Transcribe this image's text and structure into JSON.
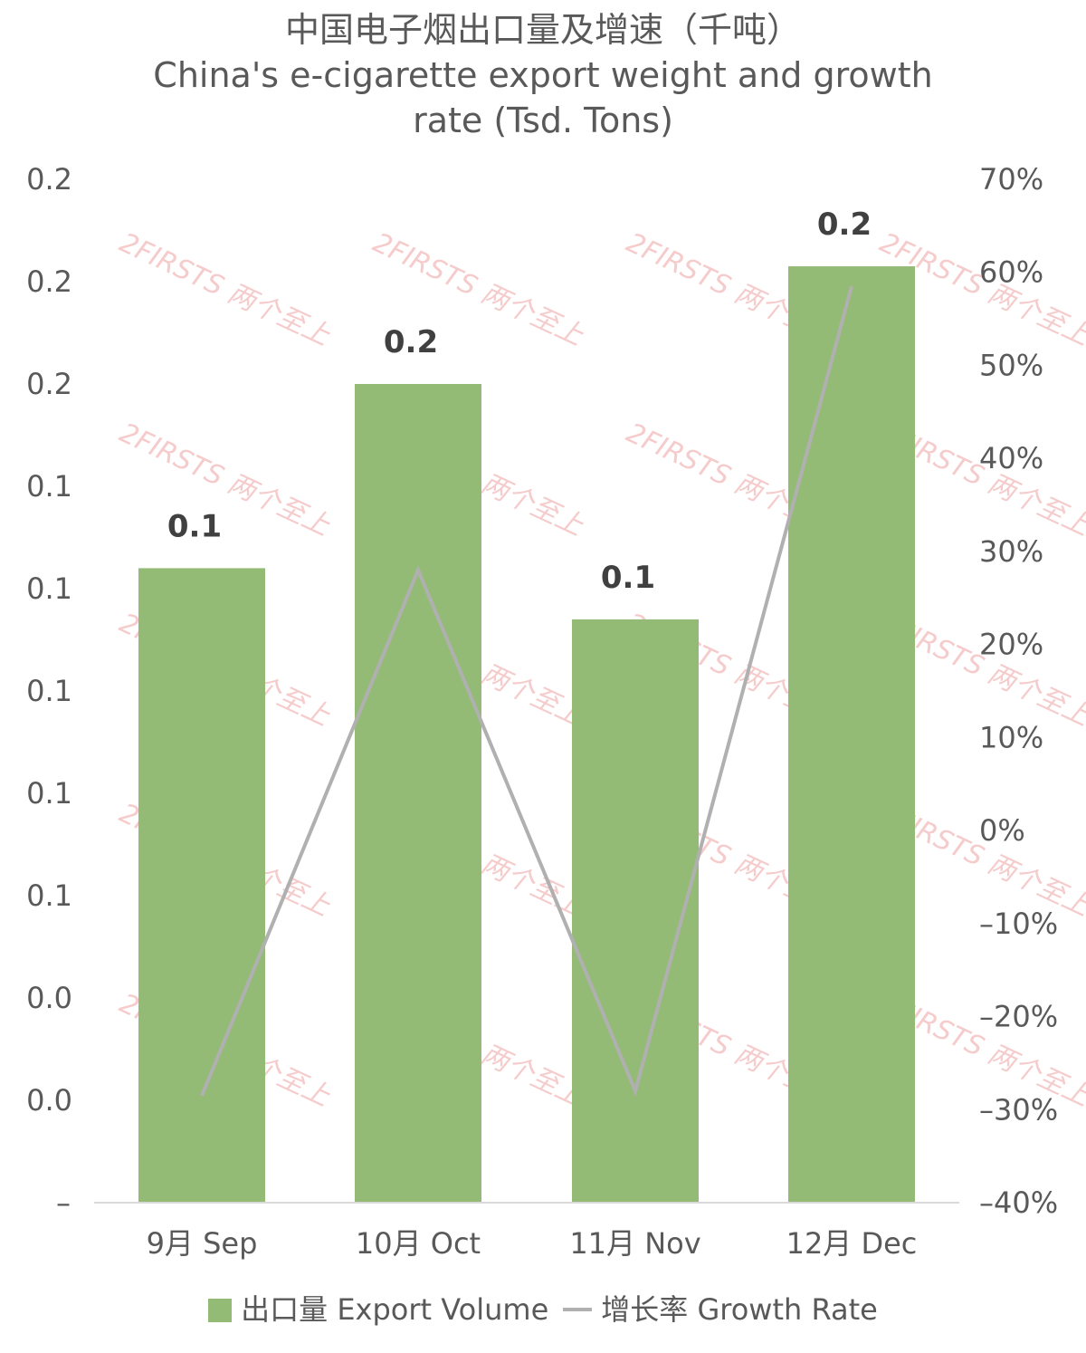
{
  "title_cn": "中国电子烟出口量及增速（千吨）",
  "title_en_line1": "China's e-cigarette export weight and growth",
  "title_en_line2": "rate (Tsd. Tons)",
  "watermark": "2FIRSTS 两个至上",
  "legend": {
    "bar_label": "出口量 Export Volume",
    "line_label": "增长率 Growth Rate"
  },
  "colors": {
    "bar": "#93bb76",
    "line": "#b0b0b0",
    "axis": "#d9d9d9"
  },
  "chart_data": {
    "type": "bar",
    "categories": [
      "9月 Sep",
      "10月 Oct",
      "11月 Nov",
      "12月 Dec"
    ],
    "series": [
      {
        "name": "出口量 Export Volume",
        "type": "bar",
        "axis": "left",
        "values": [
          0.124,
          0.16,
          0.114,
          0.183
        ]
      },
      {
        "name": "增长率 Growth Rate",
        "type": "line",
        "axis": "right",
        "values": [
          -28.5,
          28,
          -28,
          58.5
        ]
      }
    ],
    "data_labels": [
      "0.1",
      "0.2",
      "0.1",
      "0.2"
    ],
    "left_axis": {
      "range": [
        0,
        0.2
      ],
      "tick_labels": [
        "0.2",
        "0.2",
        "0.2",
        "0.1",
        "0.1",
        "0.1",
        "0.1",
        "0.1",
        "0.0",
        "0.0",
        "–"
      ]
    },
    "right_axis": {
      "range": [
        -40,
        70
      ],
      "tick_labels": [
        "70%",
        "60%",
        "50%",
        "40%",
        "30%",
        "20%",
        "10%",
        "0%",
        "–10%",
        "–20%",
        "–30%",
        "–40%"
      ]
    },
    "grid": false,
    "legend_position": "bottom"
  }
}
